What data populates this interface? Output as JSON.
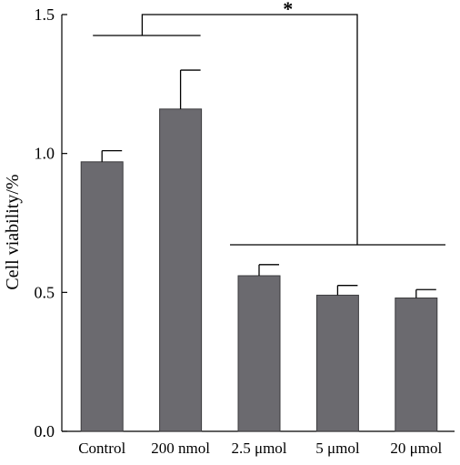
{
  "chart_data": {
    "type": "bar",
    "categories": [
      "Control",
      "200 nmol",
      "2.5 μmol",
      "5 μmol",
      "20 μmol"
    ],
    "values": [
      0.97,
      1.16,
      0.56,
      0.49,
      0.48
    ],
    "errors": [
      0.04,
      0.14,
      0.04,
      0.035,
      0.03
    ],
    "title": "",
    "xlabel": "",
    "ylabel": "Cell viability/%",
    "ylim": [
      0,
      1.5
    ],
    "yticks": [
      "0.0",
      "0.5",
      "1.0",
      "1.5"
    ],
    "grid": false,
    "bar_color": "#6b6a6f",
    "significance": {
      "label": "*",
      "group_a": [
        "Control",
        "200 nmol"
      ],
      "group_b": [
        "2.5 μmol",
        "5 μmol",
        "20 μmol"
      ]
    }
  }
}
